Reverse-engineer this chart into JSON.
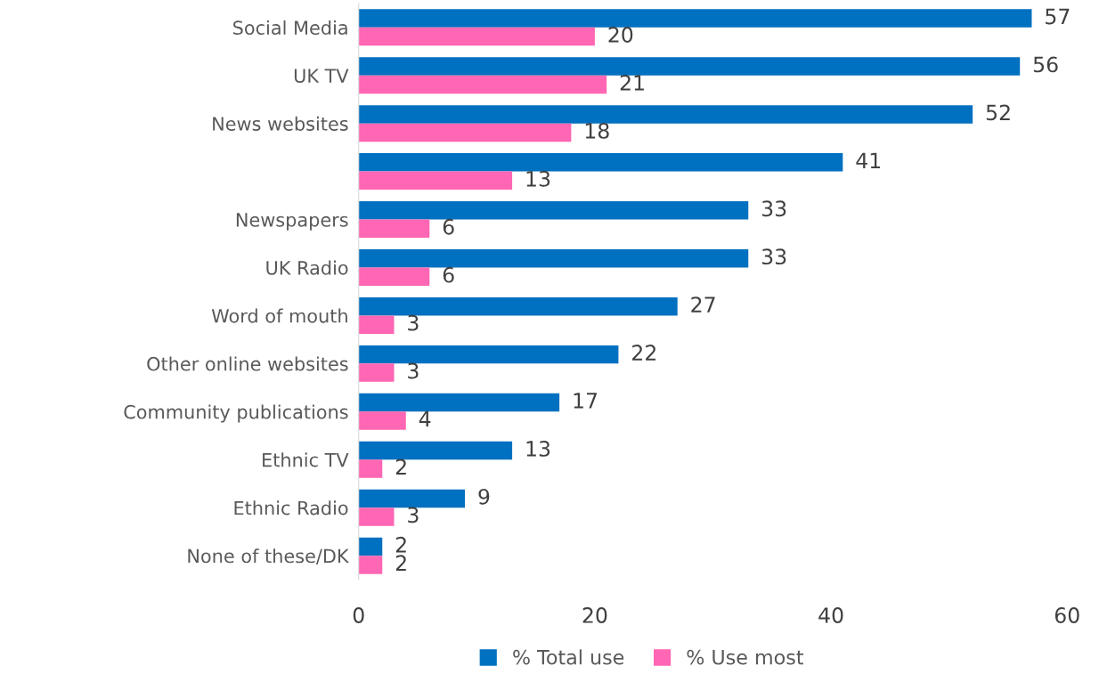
{
  "chart_data": {
    "type": "bar",
    "orientation": "horizontal",
    "categories": [
      "Social Media",
      "UK TV",
      "News websites",
      null,
      "Newspapers",
      "UK Radio",
      "Word of mouth",
      "Other online websites",
      "Community publications",
      "Ethnic TV",
      "Ethnic Radio",
      "None of these/DK"
    ],
    "series": [
      {
        "name": "% Total use",
        "color": "#0070c0",
        "values": [
          57,
          56,
          52,
          41,
          33,
          33,
          27,
          22,
          17,
          13,
          9,
          2
        ]
      },
      {
        "name": "% Use most",
        "color": "#ff66b3",
        "values": [
          20,
          21,
          18,
          13,
          6,
          6,
          3,
          3,
          4,
          2,
          3,
          2
        ]
      }
    ],
    "xlim": [
      0,
      60
    ],
    "xticks": [
      0,
      20,
      40,
      60
    ],
    "data_labels": true,
    "grid": false,
    "legend": "bottom"
  }
}
